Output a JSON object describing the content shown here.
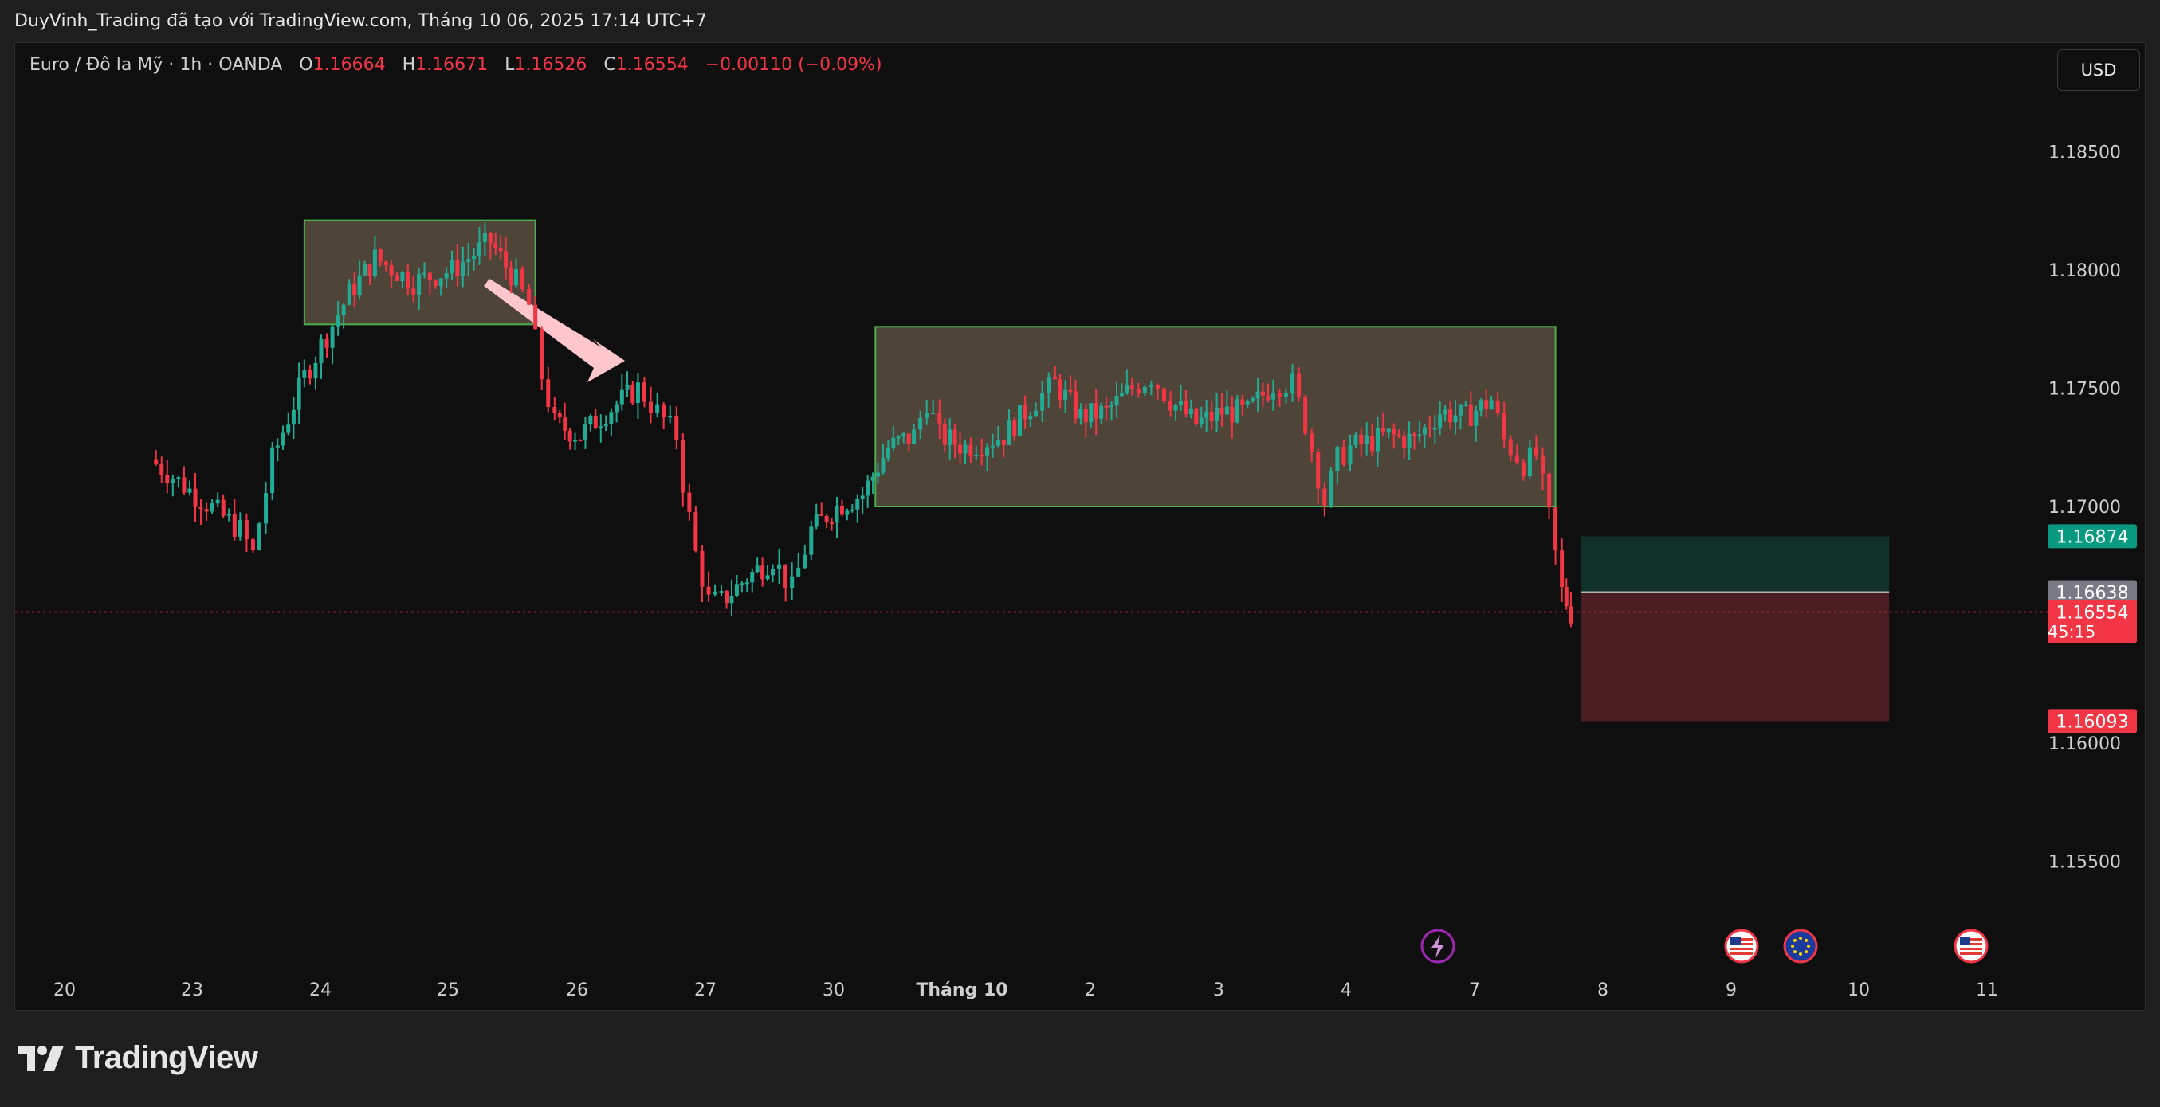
{
  "caption": "DuyVinh_Trading đã tạo với TradingView.com, Tháng 10 06, 2025 17:14 UTC+7",
  "legend": {
    "symbol": "Euro / Đô la Mỹ · 1h · OANDA",
    "o_label": "O",
    "o_value": "1.16664",
    "h_label": "H",
    "h_value": "1.16671",
    "l_label": "L",
    "l_value": "1.16526",
    "c_label": "C",
    "c_value": "1.16554",
    "change": "−0.00110 (−0.09%)"
  },
  "currency_button": "USD",
  "brand": "TradingView",
  "colors": {
    "up": "#22ab94",
    "down": "#f23645",
    "zone_fill": "#5a4d3f",
    "zone_border": "#4caf50",
    "arrow": "#ffc7cc",
    "target_fill": "#10302a",
    "stop_fill": "#4a1e22"
  },
  "chart_data": {
    "type": "candlestick",
    "symbol": "EURUSD",
    "timeframe": "1h",
    "price_axis": {
      "ticks": [
        "1.18500",
        "1.18000",
        "1.17500",
        "1.17000",
        "1.16000",
        "1.15500"
      ],
      "range": [
        1.1515,
        1.1875
      ]
    },
    "time_axis": [
      "20",
      "23",
      "24",
      "25",
      "26",
      "27",
      "30",
      "Tháng 10",
      "2",
      "3",
      "4",
      "7",
      "8",
      "9",
      "10",
      "11"
    ],
    "price_labels": {
      "target": "1.16874",
      "entry": "1.16638",
      "current": "1.16554",
      "countdown": "45:15",
      "stop": "1.16093"
    },
    "zones": [
      {
        "from_day": 0.85,
        "to_day": 2.65,
        "low": 1.1777,
        "high": 1.1821
      },
      {
        "from_day": 5.3,
        "to_day": 10.6,
        "low": 1.17,
        "high": 1.1776
      }
    ],
    "position": {
      "from_day": 10.8,
      "to_day": 13.2,
      "target": 1.16874,
      "entry": 1.16638,
      "stop": 1.16093
    },
    "path": [
      [
        -0.35,
        1.172
      ],
      [
        0.0,
        1.1705
      ],
      [
        0.35,
        1.169
      ],
      [
        0.45,
        1.168
      ],
      [
        0.6,
        1.172
      ],
      [
        0.85,
        1.1755
      ],
      [
        1.2,
        1.179
      ],
      [
        1.4,
        1.1805
      ],
      [
        1.7,
        1.1795
      ],
      [
        2.0,
        1.18
      ],
      [
        2.3,
        1.1812
      ],
      [
        2.5,
        1.1795
      ],
      [
        2.6,
        1.1785
      ],
      [
        2.7,
        1.1755
      ],
      [
        2.8,
        1.1735
      ],
      [
        3.0,
        1.173
      ],
      [
        3.2,
        1.174
      ],
      [
        3.45,
        1.175
      ],
      [
        3.6,
        1.174
      ],
      [
        3.75,
        1.173
      ],
      [
        3.8,
        1.171
      ],
      [
        3.9,
        1.168
      ],
      [
        4.0,
        1.166
      ],
      [
        4.1,
        1.166
      ],
      [
        4.3,
        1.167
      ],
      [
        4.5,
        1.1678
      ],
      [
        4.65,
        1.1665
      ],
      [
        4.8,
        1.169
      ],
      [
        5.0,
        1.17
      ],
      [
        5.2,
        1.1705
      ],
      [
        5.4,
        1.1725
      ],
      [
        5.6,
        1.173
      ],
      [
        5.7,
        1.1745
      ],
      [
        5.8,
        1.173
      ],
      [
        6.0,
        1.1725
      ],
      [
        6.3,
        1.173
      ],
      [
        6.55,
        1.1745
      ],
      [
        6.7,
        1.1752
      ],
      [
        6.9,
        1.1738
      ],
      [
        7.1,
        1.174
      ],
      [
        7.3,
        1.175
      ],
      [
        7.45,
        1.1755
      ],
      [
        7.6,
        1.1745
      ],
      [
        7.8,
        1.1735
      ],
      [
        8.0,
        1.174
      ],
      [
        8.2,
        1.174
      ],
      [
        8.4,
        1.1752
      ],
      [
        8.55,
        1.1752
      ],
      [
        8.65,
        1.1735
      ],
      [
        8.8,
        1.1702
      ],
      [
        8.9,
        1.172
      ],
      [
        9.0,
        1.1725
      ],
      [
        9.3,
        1.173
      ],
      [
        9.5,
        1.1728
      ],
      [
        9.7,
        1.174
      ],
      [
        9.9,
        1.1738
      ],
      [
        10.1,
        1.1745
      ],
      [
        10.2,
        1.1728
      ],
      [
        10.35,
        1.1718
      ],
      [
        10.45,
        1.1722
      ],
      [
        10.55,
        1.1695
      ],
      [
        10.65,
        1.1664
      ],
      [
        10.72,
        1.1655
      ]
    ]
  }
}
